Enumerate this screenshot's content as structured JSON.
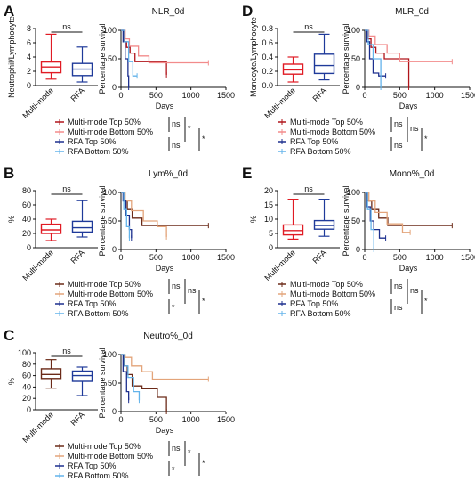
{
  "colors": {
    "multi_top": "#b0141a",
    "multi_bottom": "#f28b8b",
    "rfa_top": "#1c2f8e",
    "rfa_bottom": "#63b3ea",
    "mono_top": "#6b2a18",
    "mono_bottom": "#e3a47a",
    "box_multi": "#e01b24",
    "box_rfa": "#1f3a9a"
  },
  "chart_data": [
    {
      "panel": "A",
      "box": {
        "type": "box",
        "ylabel": "Neutrophil/Lymphocyte",
        "ylim": [
          0,
          8
        ],
        "yticks": [
          "0",
          "2",
          "4",
          "6",
          "8"
        ],
        "categories": [
          "Multi-mode",
          "RFA"
        ],
        "sig": "ns",
        "stats": [
          {
            "min": 0.9,
            "q1": 1.8,
            "median": 2.6,
            "q3": 3.3,
            "max": 7.2
          },
          {
            "min": 0.5,
            "q1": 1.4,
            "median": 2.3,
            "q3": 3.1,
            "max": 5.4
          }
        ]
      },
      "km": {
        "type": "line",
        "title": "NLR_0d",
        "xlabel": "Days",
        "ylabel": "Percentage survival",
        "xlim": [
          0,
          1500
        ],
        "ylim": [
          0,
          100
        ],
        "xticks": [
          "0",
          "500",
          "1000",
          "1500"
        ],
        "yticks": [
          "0",
          "50",
          "100"
        ],
        "series": [
          {
            "name": "Multi-mode Top 50%",
            "x": [
              0,
              40,
              80,
              130,
              200,
              520,
              650,
              650
            ],
            "y": [
              100,
              80,
              70,
              60,
              45,
              45,
              22,
              22
            ]
          },
          {
            "name": "Multi-mode Bottom 50%",
            "x": [
              0,
              60,
              120,
              250,
              400,
              1250
            ],
            "y": [
              100,
              85,
              72,
              55,
              43,
              43
            ]
          },
          {
            "name": "RFA Top 50%",
            "x": [
              0,
              30,
              60,
              100,
              110
            ],
            "y": [
              100,
              80,
              50,
              20,
              0
            ]
          },
          {
            "name": "RFA Bottom 50%",
            "x": [
              0,
              50,
              110,
              170,
              230
            ],
            "y": [
              100,
              80,
              45,
              20,
              20
            ]
          }
        ]
      },
      "legend": [
        "Multi-mode Top 50%",
        "Multi-mode Bottom 50%",
        "RFA Top 50%",
        "RFA Bottom 50%"
      ],
      "sig": [
        "ns",
        "*",
        "ns",
        "*"
      ]
    },
    {
      "panel": "B",
      "box": {
        "type": "box",
        "ylabel": "%",
        "ylim": [
          0,
          80
        ],
        "yticks": [
          "0",
          "20",
          "40",
          "60",
          "80"
        ],
        "categories": [
          "Multi-mode",
          "RFA"
        ],
        "sig": "ns",
        "stats": [
          {
            "min": 10,
            "q1": 20,
            "median": 25,
            "q3": 33,
            "max": 40
          },
          {
            "min": 15,
            "q1": 22,
            "median": 28,
            "q3": 37,
            "max": 66
          }
        ]
      },
      "km": {
        "type": "line",
        "title": "Lym%_0d",
        "xlabel": "Days",
        "ylabel": "Percentage survival",
        "xlim": [
          0,
          1500
        ],
        "ylim": [
          0,
          100
        ],
        "xticks": [
          "0",
          "500",
          "1000",
          "1500"
        ],
        "yticks": [
          "0",
          "50",
          "100"
        ],
        "series": [
          {
            "name": "Multi-mode Top 50%",
            "x": [
              0,
              40,
              90,
              160,
              300,
              1250
            ],
            "y": [
              100,
              85,
              70,
              55,
              42,
              42
            ]
          },
          {
            "name": "Multi-mode Bottom 50%",
            "x": [
              0,
              60,
              150,
              320,
              520,
              650
            ],
            "y": [
              100,
              85,
              68,
              50,
              40,
              22
            ]
          },
          {
            "name": "RFA Top 50%",
            "x": [
              0,
              30,
              70,
              120,
              150,
              150
            ],
            "y": [
              100,
              85,
              60,
              35,
              20,
              20
            ]
          },
          {
            "name": "RFA Bottom 50%",
            "x": [
              0,
              40,
              80,
              120
            ],
            "y": [
              100,
              70,
              40,
              20
            ]
          }
        ]
      },
      "legend": [
        "Multi-mode Top 50%",
        "Multi-mode Bottom 50%",
        "RFA Top 50%",
        "RFA Bottom 50%"
      ],
      "sig": [
        "ns",
        "ns",
        "*",
        "*"
      ]
    },
    {
      "panel": "C",
      "box": {
        "type": "box",
        "ylabel": "%",
        "ylim": [
          0,
          100
        ],
        "yticks": [
          "0",
          "20",
          "40",
          "60",
          "80",
          "100"
        ],
        "categories": [
          "Multi-mode",
          "RFA"
        ],
        "sig": "ns",
        "stats": [
          {
            "min": 38,
            "q1": 55,
            "median": 62,
            "q3": 72,
            "max": 88
          },
          {
            "min": 25,
            "q1": 50,
            "median": 60,
            "q3": 68,
            "max": 75
          }
        ]
      },
      "km": {
        "type": "line",
        "title": "Neutro%_0d",
        "xlabel": "Days",
        "ylabel": "Percentage survival",
        "xlim": [
          0,
          1500
        ],
        "ylim": [
          0,
          100
        ],
        "xticks": [
          "0",
          "500",
          "1000",
          "1500"
        ],
        "yticks": [
          "0",
          "50",
          "100"
        ],
        "series": [
          {
            "name": "Multi-mode Top 50%",
            "x": [
              0,
              40,
              90,
              160,
              300,
              520,
              650
            ],
            "y": [
              100,
              80,
              65,
              45,
              40,
              25,
              0
            ]
          },
          {
            "name": "Multi-mode Bottom 50%",
            "x": [
              0,
              60,
              150,
              300,
              450,
              1250
            ],
            "y": [
              100,
              95,
              80,
              70,
              57,
              57
            ]
          },
          {
            "name": "RFA Top 50%",
            "x": [
              0,
              30,
              80,
              110
            ],
            "y": [
              100,
              70,
              35,
              20
            ]
          },
          {
            "name": "RFA Bottom 50%",
            "x": [
              0,
              50,
              100,
              180,
              260
            ],
            "y": [
              100,
              80,
              60,
              35,
              20
            ]
          }
        ]
      },
      "legend": [
        "Multi-mode Top 50%",
        "Multi-mode Bottom 50%",
        "RFA Top 50%",
        "RFA Bottom 50%"
      ],
      "sig": [
        "ns",
        "*",
        "*",
        "*"
      ]
    },
    {
      "panel": "D",
      "box": {
        "type": "box",
        "ylabel": "Monocyte/Lymphocyte",
        "ylim": [
          0,
          0.8
        ],
        "yticks": [
          "0.0",
          "0.2",
          "0.4",
          "0.6",
          "0.8"
        ],
        "categories": [
          "Multi-mode",
          "RFA"
        ],
        "sig": "ns",
        "stats": [
          {
            "min": 0.05,
            "q1": 0.16,
            "median": 0.22,
            "q3": 0.3,
            "max": 0.4
          },
          {
            "min": 0.08,
            "q1": 0.17,
            "median": 0.28,
            "q3": 0.44,
            "max": 0.72
          }
        ]
      },
      "km": {
        "type": "line",
        "title": "MLR_0d",
        "xlabel": "Days",
        "ylabel": "Percentage survival",
        "xlim": [
          0,
          1500
        ],
        "ylim": [
          0,
          100
        ],
        "xticks": [
          "0",
          "500",
          "1000",
          "1500"
        ],
        "yticks": [
          "0",
          "50",
          "100"
        ],
        "series": [
          {
            "name": "Multi-mode Top 50%",
            "x": [
              0,
              40,
              90,
              160,
              280,
              520,
              630
            ],
            "y": [
              100,
              85,
              70,
              60,
              50,
              50,
              0
            ]
          },
          {
            "name": "Multi-mode Bottom 50%",
            "x": [
              0,
              60,
              150,
              320,
              500,
              1250
            ],
            "y": [
              100,
              90,
              75,
              60,
              45,
              45
            ]
          },
          {
            "name": "RFA Top 50%",
            "x": [
              0,
              30,
              70,
              120,
              200,
              300
            ],
            "y": [
              100,
              80,
              50,
              25,
              20,
              20
            ]
          },
          {
            "name": "RFA Bottom 50%",
            "x": [
              0,
              50,
              120,
              230
            ],
            "y": [
              100,
              75,
              50,
              0
            ]
          }
        ]
      },
      "legend": [
        "Multi-mode Top 50%",
        "Multi-mode Bottom 50%",
        "RFA Top 50%",
        "RFA Bottom 50%"
      ],
      "sig": [
        "ns",
        "ns",
        "ns",
        "*"
      ]
    },
    {
      "panel": "E",
      "box": {
        "type": "box",
        "ylabel": "%",
        "ylim": [
          0,
          20
        ],
        "yticks": [
          "0",
          "5",
          "10",
          "15",
          "20"
        ],
        "categories": [
          "Multi-mode",
          "RFA"
        ],
        "sig": "ns",
        "stats": [
          {
            "min": 3,
            "q1": 4.5,
            "median": 6,
            "q3": 8,
            "max": 17
          },
          {
            "min": 4,
            "q1": 6.5,
            "median": 7.8,
            "q3": 9.5,
            "max": 17
          }
        ]
      },
      "km": {
        "type": "line",
        "title": "Mono%_0d",
        "xlabel": "Days",
        "ylabel": "Percentage survival",
        "xlim": [
          0,
          1500
        ],
        "ylim": [
          0,
          100
        ],
        "xticks": [
          "0",
          "500",
          "1000",
          "1500"
        ],
        "yticks": [
          "0",
          "50",
          "100"
        ],
        "series": [
          {
            "name": "Multi-mode Top 50%",
            "x": [
              0,
              40,
              100,
              200,
              330,
              1250
            ],
            "y": [
              100,
              85,
              70,
              55,
              42,
              42
            ]
          },
          {
            "name": "Multi-mode Bottom 50%",
            "x": [
              0,
              60,
              150,
              320,
              540,
              650
            ],
            "y": [
              100,
              85,
              65,
              45,
              30,
              30
            ]
          },
          {
            "name": "RFA Top 50%",
            "x": [
              0,
              30,
              80,
              130,
              210,
              300
            ],
            "y": [
              100,
              75,
              50,
              35,
              20,
              20
            ]
          },
          {
            "name": "RFA Bottom 50%",
            "x": [
              0,
              40,
              90,
              130
            ],
            "y": [
              100,
              70,
              35,
              0
            ]
          }
        ]
      },
      "legend": [
        "Multi-mode Top 50%",
        "Multi-mode Bottom 50%",
        "RFA Top 50%",
        "RFA Bottom 50%"
      ],
      "sig": [
        "ns",
        "ns",
        "ns",
        "*"
      ]
    }
  ]
}
